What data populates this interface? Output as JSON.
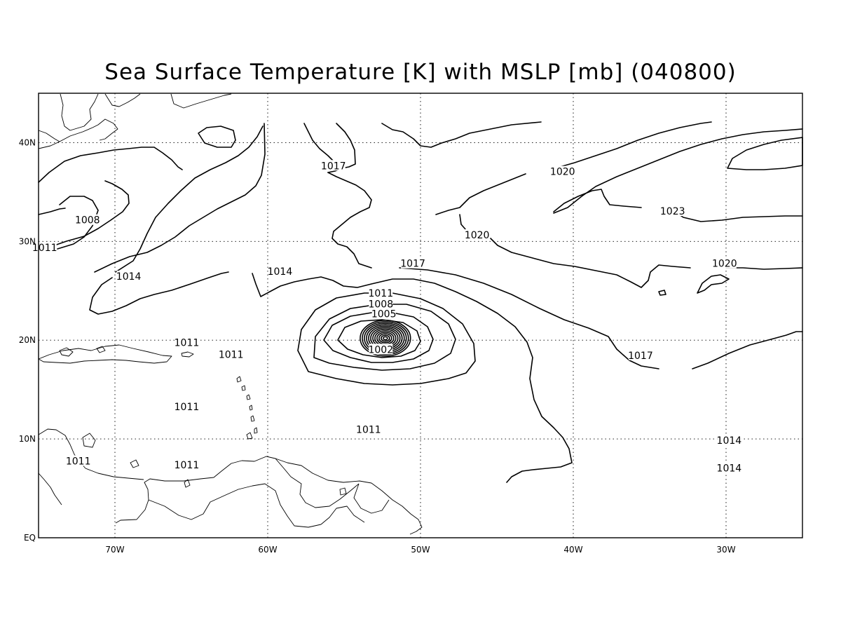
{
  "title": "Sea Surface Temperature [K] with MSLP [mb] (040800)",
  "chart_data": {
    "type": "contour-map",
    "field": "MSLP",
    "units": "mb",
    "lon_range": [
      -75,
      -25
    ],
    "lat_range": [
      0,
      45
    ],
    "x_ticks": [
      {
        "value": -70,
        "label": "70W"
      },
      {
        "value": -60,
        "label": "60W"
      },
      {
        "value": -50,
        "label": "50W"
      },
      {
        "value": -40,
        "label": "40W"
      },
      {
        "value": -30,
        "label": "30W"
      }
    ],
    "y_ticks": [
      {
        "value": 0,
        "label": "EQ"
      },
      {
        "value": 10,
        "label": "10N"
      },
      {
        "value": 20,
        "label": "20N"
      },
      {
        "value": 30,
        "label": "30N"
      },
      {
        "value": 40,
        "label": "40N"
      }
    ],
    "grid": true,
    "low_center": {
      "lon": -52.3,
      "lat": 20.2
    },
    "contour_labels": [
      {
        "text": "1008",
        "lon": -71.8,
        "lat": 32.1
      },
      {
        "text": "1011",
        "lon": -74.6,
        "lat": 29.3
      },
      {
        "text": "1014",
        "lon": -69.1,
        "lat": 26.4
      },
      {
        "text": "1014",
        "lon": -59.2,
        "lat": 26.9
      },
      {
        "text": "1017",
        "lon": -55.7,
        "lat": 37.6
      },
      {
        "text": "1020",
        "lon": -40.7,
        "lat": 37.0
      },
      {
        "text": "1023",
        "lon": -33.5,
        "lat": 33.0
      },
      {
        "text": "1020",
        "lon": -46.3,
        "lat": 30.6
      },
      {
        "text": "1017",
        "lon": -50.5,
        "lat": 27.7
      },
      {
        "text": "1020",
        "lon": -30.1,
        "lat": 27.7
      },
      {
        "text": "1011",
        "lon": -52.6,
        "lat": 24.7
      },
      {
        "text": "1008",
        "lon": -52.6,
        "lat": 23.6
      },
      {
        "text": "1005",
        "lon": -52.4,
        "lat": 22.6
      },
      {
        "text": "1002",
        "lon": -52.6,
        "lat": 19.0
      },
      {
        "text": "1017",
        "lon": -35.6,
        "lat": 18.4
      },
      {
        "text": "1011",
        "lon": -65.3,
        "lat": 19.7
      },
      {
        "text": "1011",
        "lon": -62.4,
        "lat": 18.5
      },
      {
        "text": "1011",
        "lon": -65.3,
        "lat": 13.2
      },
      {
        "text": "1011",
        "lon": -53.4,
        "lat": 10.9
      },
      {
        "text": "1014",
        "lon": -29.8,
        "lat": 9.8
      },
      {
        "text": "1011",
        "lon": -72.4,
        "lat": 7.7
      },
      {
        "text": "1011",
        "lon": -65.3,
        "lat": 7.3
      },
      {
        "text": "1014",
        "lon": -29.8,
        "lat": 7.0
      }
    ]
  }
}
